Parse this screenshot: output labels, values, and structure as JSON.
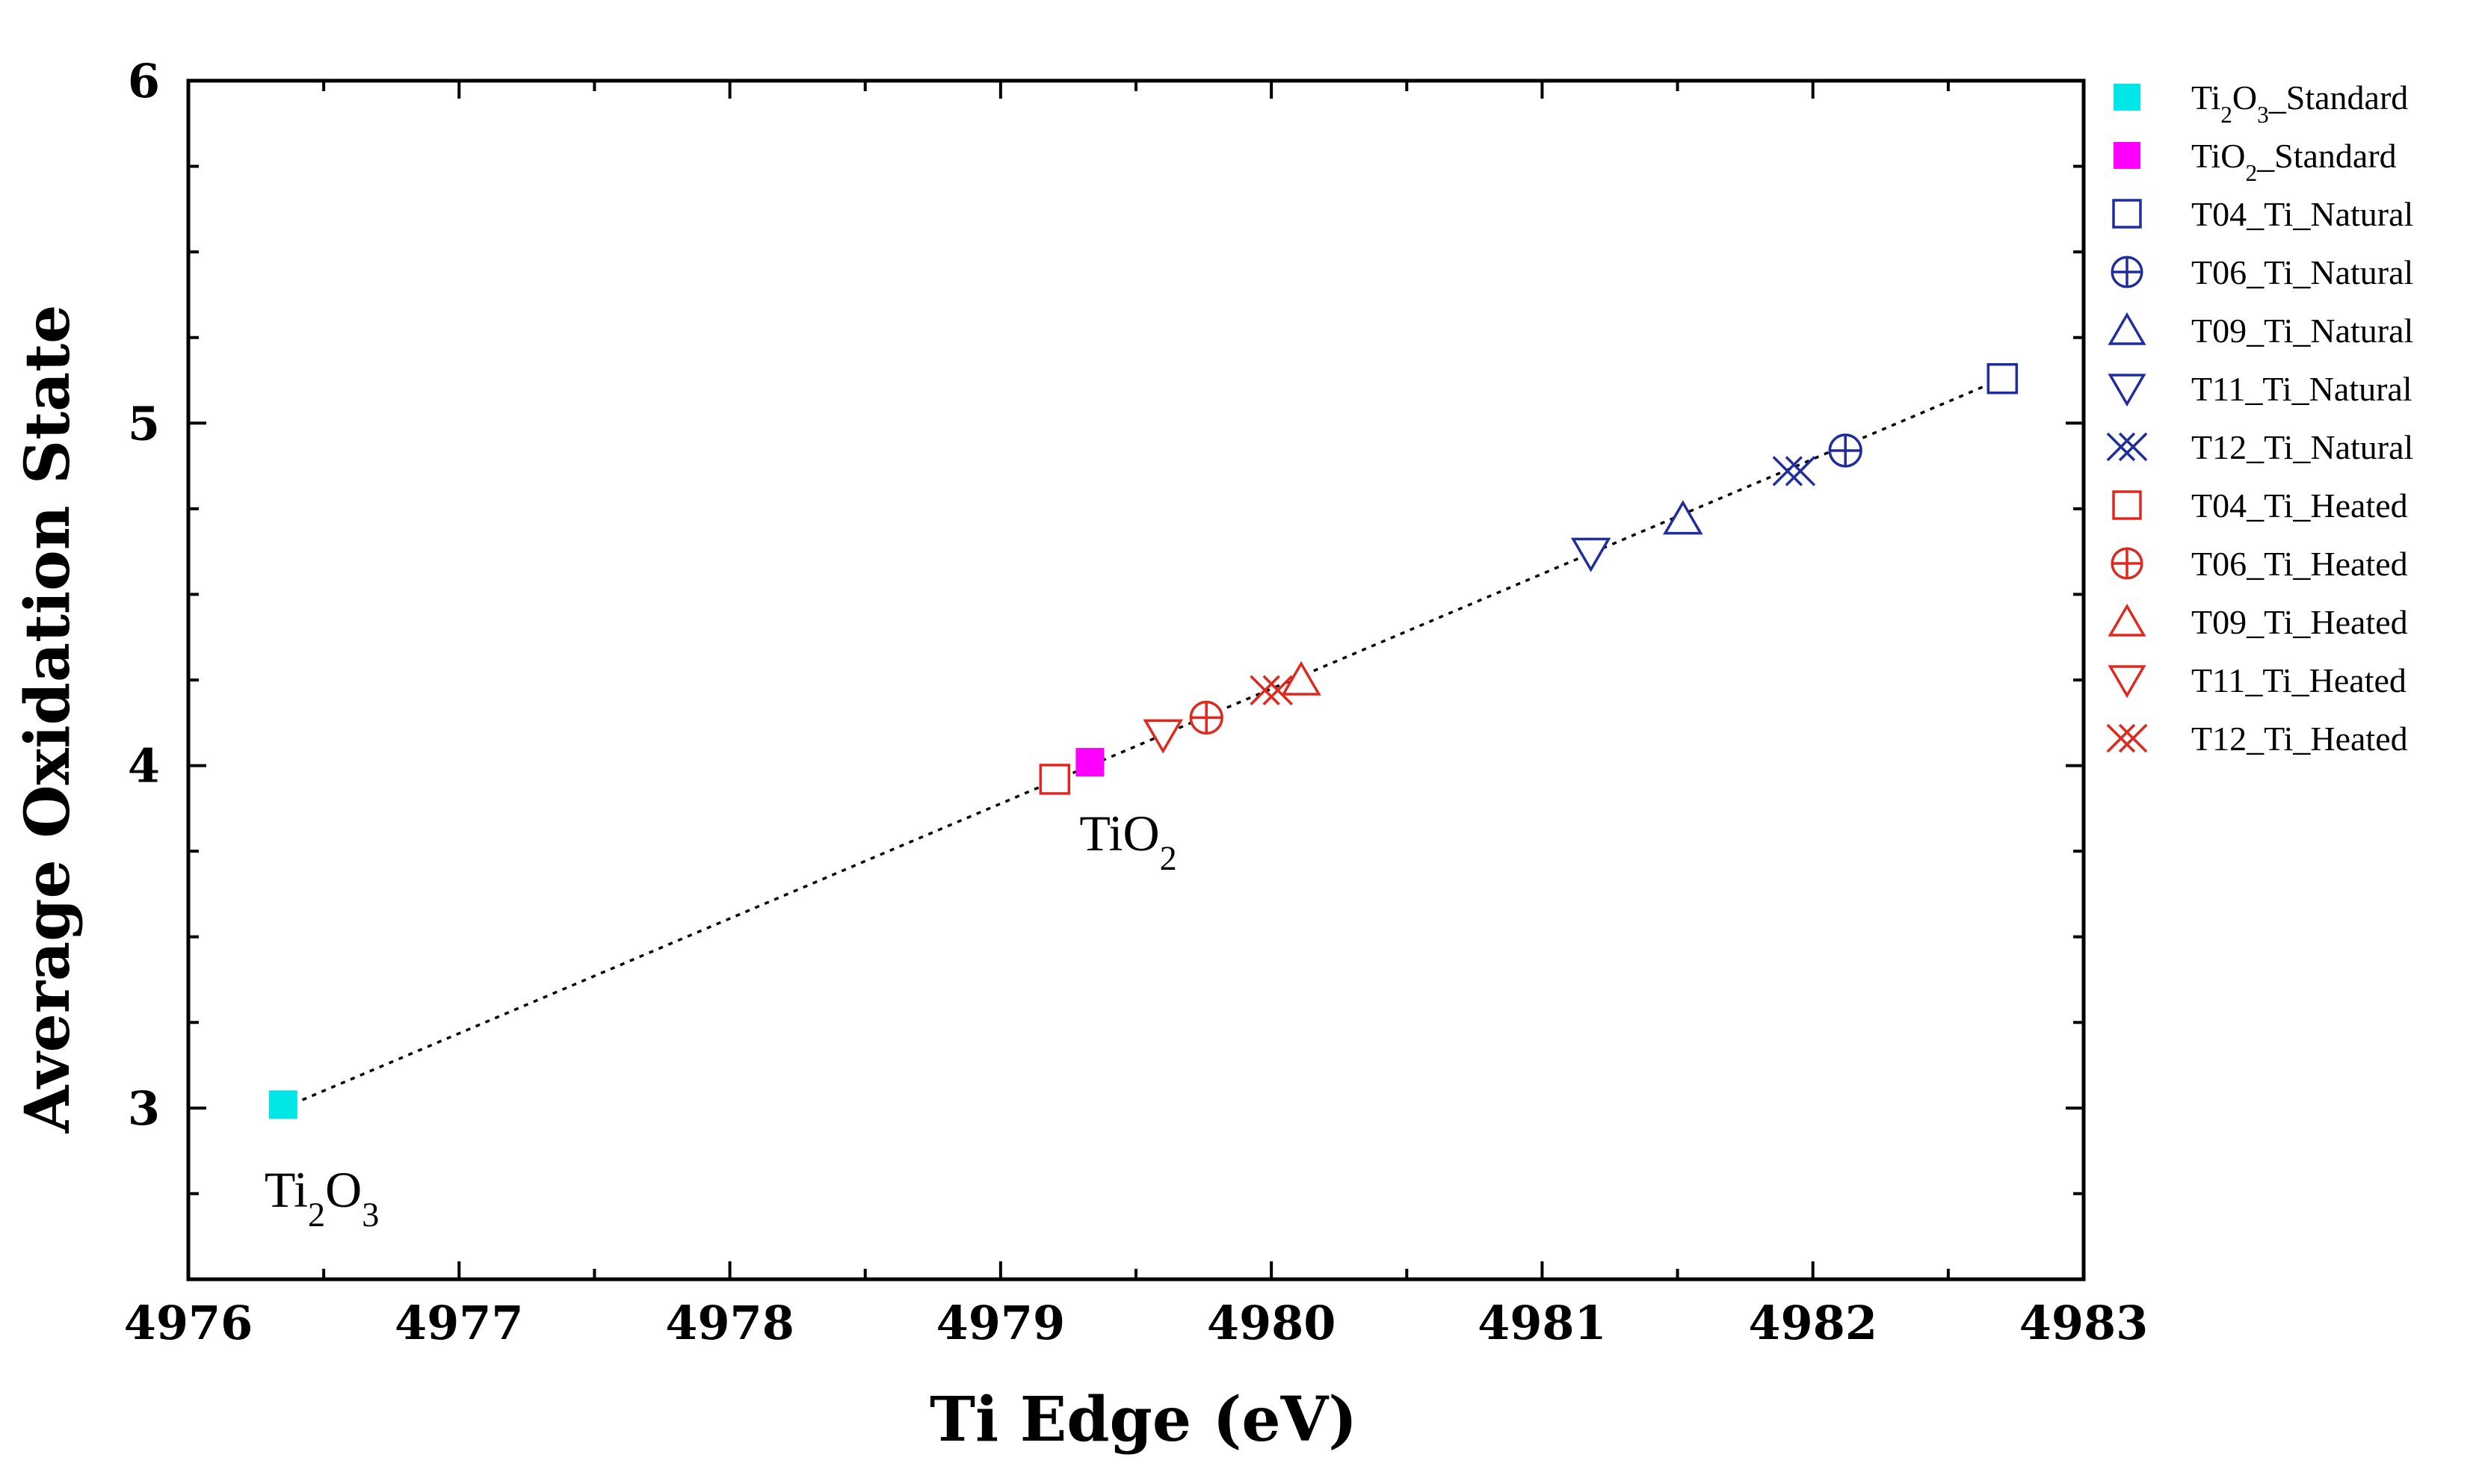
{
  "chart_data": {
    "type": "scatter",
    "title": "",
    "xlabel": "Ti Edge (eV)",
    "ylabel": "Average Oxidation State",
    "xlim": [
      4976,
      4983
    ],
    "ylim": [
      2.5,
      6
    ],
    "xticks": [
      4976,
      4977,
      4978,
      4979,
      4980,
      4981,
      4982,
      4983
    ],
    "yticks": [
      3,
      4,
      5,
      6
    ],
    "grid": false,
    "legend_position": "right",
    "colors": {
      "navy": "#1f2d9e",
      "red": "#e0281e",
      "cyan": "#00e5e5",
      "magenta": "#ff00ff",
      "axis": "#000000"
    },
    "fit_line": {
      "style": "dotted",
      "x": [
        4976.35,
        4982.7
      ],
      "y": [
        3.0,
        5.13
      ]
    },
    "series": [
      {
        "name": "Ti2O3_Standard",
        "base": "Ti",
        "sub1": "2",
        "mid": "O",
        "sub2": "3",
        "tail": "_Standard",
        "marker": "square-filled",
        "color": "#00e5e5",
        "x": [
          4976.35
        ],
        "y": [
          3.01
        ]
      },
      {
        "name": "TiO2_Standard",
        "base": "TiO",
        "sub1": "2",
        "mid": "",
        "sub2": "",
        "tail": "_Standard",
        "marker": "square-filled",
        "color": "#ff00ff",
        "x": [
          4979.33
        ],
        "y": [
          4.01
        ]
      },
      {
        "name": "T04_Ti_Natural",
        "marker": "square",
        "color": "#1f2d9e",
        "x": [
          4982.7
        ],
        "y": [
          5.13
        ]
      },
      {
        "name": "T06_Ti_Natural",
        "marker": "circle-plus",
        "color": "#1f2d9e",
        "x": [
          4982.12
        ],
        "y": [
          4.92
        ]
      },
      {
        "name": "T09_Ti_Natural",
        "marker": "triangle-up",
        "color": "#1f2d9e",
        "x": [
          4981.52
        ],
        "y": [
          4.72
        ]
      },
      {
        "name": "T11_Ti_Natural",
        "marker": "triangle-down",
        "color": "#1f2d9e",
        "x": [
          4981.18
        ],
        "y": [
          4.62
        ]
      },
      {
        "name": "T12_Ti_Natural",
        "marker": "double-x",
        "color": "#1f2d9e",
        "x": [
          4981.93
        ],
        "y": [
          4.86
        ]
      },
      {
        "name": "T04_Ti_Heated",
        "marker": "square",
        "color": "#e0281e",
        "x": [
          4979.2
        ],
        "y": [
          3.96
        ]
      },
      {
        "name": "T06_Ti_Heated",
        "marker": "circle-plus",
        "color": "#e0281e",
        "x": [
          4979.76
        ],
        "y": [
          4.14
        ]
      },
      {
        "name": "T09_Ti_Heated",
        "marker": "triangle-up",
        "color": "#e0281e",
        "x": [
          4980.11
        ],
        "y": [
          4.25
        ]
      },
      {
        "name": "T11_Ti_Heated",
        "marker": "triangle-down",
        "color": "#e0281e",
        "x": [
          4979.6
        ],
        "y": [
          4.09
        ]
      },
      {
        "name": "T12_Ti_Heated",
        "marker": "double-x",
        "color": "#e0281e",
        "x": [
          4980.0
        ],
        "y": [
          4.22
        ]
      }
    ],
    "annotations": [
      {
        "base": "TiO",
        "sub1": "2",
        "mid": "",
        "sub2": "",
        "x": 4979.33,
        "y": 3.8
      },
      {
        "base": "Ti",
        "sub1": "2",
        "mid": "O",
        "sub2": "3",
        "x": 4976.32,
        "y": 2.76
      }
    ]
  }
}
